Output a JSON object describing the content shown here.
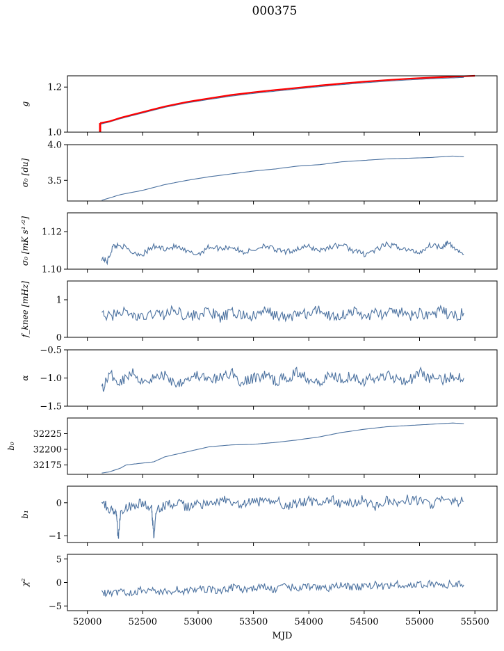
{
  "title": "000375",
  "xlabel": "MJD",
  "x_ticks": [
    52000,
    52500,
    53000,
    53500,
    54000,
    54500,
    55000,
    55500
  ],
  "x_tick_labels": [
    "52000",
    "52500",
    "53000",
    "53500",
    "54000",
    "54500",
    "55000",
    "55500"
  ],
  "xlim": [
    51820,
    55700
  ],
  "colors": {
    "series": "#4c72a0",
    "fit": "#ff0000"
  },
  "chart_data": [
    {
      "type": "line",
      "ylabel": "g",
      "ylim": [
        1.0,
        1.25
      ],
      "yticks": [
        1.0,
        1.2
      ],
      "ytick_labels": [
        "1.0",
        "1.2"
      ],
      "series": [
        {
          "x": [
            52115,
            52200,
            52300,
            52500,
            52700,
            52900,
            53100,
            53300,
            53500,
            53700,
            53900,
            54100,
            54300,
            54500,
            54700,
            54900,
            55100,
            55300,
            55400
          ],
          "y": [
            1.035,
            1.045,
            1.06,
            1.085,
            1.11,
            1.13,
            1.145,
            1.16,
            1.172,
            1.182,
            1.192,
            1.202,
            1.211,
            1.219,
            1.226,
            1.232,
            1.237,
            1.241,
            1.243
          ]
        },
        {
          "x": [
            52115,
            52200,
            52300,
            52500,
            52700,
            52900,
            53100,
            53300,
            53500,
            53700,
            53900,
            54100,
            54300,
            54500,
            54700,
            54900,
            55100,
            55300,
            55500
          ],
          "y": [
            1.04,
            1.048,
            1.064,
            1.089,
            1.114,
            1.134,
            1.15,
            1.165,
            1.177,
            1.187,
            1.197,
            1.207,
            1.216,
            1.224,
            1.231,
            1.237,
            1.242,
            1.246,
            1.25
          ]
        }
      ]
    },
    {
      "type": "line",
      "ylabel": "σ₀ [du]",
      "ylim": [
        3.21,
        4.0
      ],
      "yticks": [
        3.5,
        4.0
      ],
      "ytick_labels": [
        "3.5",
        "4.0"
      ],
      "series": [
        {
          "x": [
            52130,
            52300,
            52500,
            52700,
            52900,
            53100,
            53300,
            53500,
            53700,
            53900,
            54100,
            54300,
            54500,
            54700,
            54900,
            55100,
            55300,
            55400
          ],
          "y": [
            3.22,
            3.3,
            3.36,
            3.44,
            3.5,
            3.55,
            3.59,
            3.63,
            3.66,
            3.7,
            3.72,
            3.76,
            3.78,
            3.8,
            3.81,
            3.82,
            3.84,
            3.83
          ]
        }
      ]
    },
    {
      "type": "line",
      "ylabel": "σ₀ [mK s¹ᐟ²]",
      "ylim": [
        1.1,
        1.13
      ],
      "yticks": [
        1.1,
        1.12
      ],
      "ytick_labels": [
        "1.10",
        "1.12"
      ],
      "series": [
        {
          "x": [
            52130,
            52180,
            52230,
            52300,
            52400,
            52500,
            52600,
            52700,
            52800,
            52900,
            53000,
            53100,
            53200,
            53300,
            53400,
            53500,
            53600,
            53700,
            53800,
            53900,
            54000,
            54100,
            54200,
            54300,
            54400,
            54500,
            54600,
            54700,
            54800,
            54900,
            55000,
            55100,
            55200,
            55250,
            55320,
            55400
          ],
          "y": [
            1.106,
            1.104,
            1.112,
            1.113,
            1.109,
            1.108,
            1.112,
            1.111,
            1.112,
            1.109,
            1.108,
            1.112,
            1.111,
            1.112,
            1.109,
            1.11,
            1.113,
            1.11,
            1.109,
            1.111,
            1.112,
            1.11,
            1.112,
            1.113,
            1.11,
            1.108,
            1.11,
            1.113,
            1.112,
            1.11,
            1.109,
            1.113,
            1.112,
            1.114,
            1.111,
            1.108
          ]
        }
      ]
    },
    {
      "type": "line",
      "ylabel": "f_knee [mHz]",
      "ylim": [
        0,
        1.5
      ],
      "yticks": [
        0,
        1
      ],
      "ytick_labels": [
        "0",
        "1"
      ],
      "series": [
        {
          "x": [
            52130,
            52200,
            52300,
            52400,
            52500,
            52600,
            52700,
            52800,
            52900,
            53000,
            53100,
            53200,
            53300,
            53400,
            53500,
            53600,
            53700,
            53800,
            53900,
            54000,
            54100,
            54200,
            54300,
            54400,
            54500,
            54600,
            54700,
            54800,
            54900,
            55000,
            55100,
            55200,
            55300,
            55400
          ],
          "y": [
            0.6,
            0.55,
            0.7,
            0.6,
            0.5,
            0.65,
            0.6,
            0.75,
            0.55,
            0.6,
            0.7,
            0.5,
            0.65,
            0.6,
            0.55,
            0.7,
            0.6,
            0.5,
            0.65,
            0.6,
            0.75,
            0.55,
            0.6,
            0.7,
            0.55,
            0.65,
            0.6,
            0.7,
            0.55,
            0.65,
            0.6,
            0.7,
            0.55,
            0.65
          ]
        }
      ]
    },
    {
      "type": "line",
      "ylabel": "α",
      "ylim": [
        -1.5,
        -0.5
      ],
      "yticks": [
        -1.5,
        -1.0,
        -0.5
      ],
      "ytick_labels": [
        "−1.5",
        "−1.0",
        "−0.5"
      ],
      "series": [
        {
          "x": [
            52130,
            52200,
            52300,
            52400,
            52500,
            52600,
            52700,
            52800,
            52900,
            53000,
            53100,
            53200,
            53300,
            53400,
            53500,
            53600,
            53700,
            53800,
            53900,
            54000,
            54100,
            54200,
            54300,
            54400,
            54500,
            54600,
            54700,
            54800,
            54900,
            55000,
            55100,
            55200,
            55300,
            55400
          ],
          "y": [
            -1.2,
            -0.95,
            -1.05,
            -0.9,
            -1.05,
            -1.0,
            -0.95,
            -1.1,
            -1.0,
            -0.95,
            -1.05,
            -1.0,
            -0.9,
            -1.1,
            -1.0,
            -0.95,
            -1.05,
            -1.0,
            -0.9,
            -1.0,
            -1.05,
            -0.95,
            -1.0,
            -0.95,
            -1.05,
            -1.0,
            -0.95,
            -1.0,
            -1.05,
            -0.9,
            -1.0,
            -1.05,
            -0.95,
            -1.0
          ]
        }
      ]
    },
    {
      "type": "line",
      "ylabel": "b₀",
      "ylim": [
        32160,
        32250
      ],
      "yticks": [
        32175,
        32200,
        32225
      ],
      "ytick_labels": [
        "32175",
        "32200",
        "32225"
      ],
      "series": [
        {
          "x": [
            52130,
            52200,
            52300,
            52350,
            52500,
            52600,
            52700,
            52900,
            53100,
            53300,
            53500,
            53700,
            53900,
            54100,
            54300,
            54500,
            54700,
            54900,
            55100,
            55300,
            55400
          ],
          "y": [
            32162,
            32164,
            32170,
            32175,
            32178,
            32180,
            32188,
            32196,
            32204,
            32207,
            32208,
            32211,
            32215,
            32220,
            32227,
            32232,
            32236,
            32238,
            32240,
            32242,
            32241
          ]
        }
      ]
    },
    {
      "type": "line",
      "ylabel": "b₁",
      "ylim": [
        -1.2,
        0.5
      ],
      "yticks": [
        -1,
        0
      ],
      "ytick_labels": [
        "−1",
        "0"
      ],
      "series": [
        {
          "x": [
            52130,
            52200,
            52260,
            52280,
            52300,
            52400,
            52500,
            52580,
            52600,
            52620,
            52700,
            52800,
            52900,
            53000,
            53100,
            53200,
            53300,
            53400,
            53500,
            53600,
            53700,
            53800,
            53900,
            54000,
            54100,
            54200,
            54300,
            54400,
            54500,
            54600,
            54700,
            54800,
            54900,
            55000,
            55100,
            55200,
            55300,
            55400
          ],
          "y": [
            0.1,
            -0.2,
            -0.3,
            -1.1,
            -0.2,
            -0.1,
            0.0,
            -0.2,
            -1.0,
            -0.2,
            -0.1,
            0.0,
            -0.15,
            0.0,
            -0.1,
            0.1,
            0.0,
            -0.1,
            0.05,
            0.0,
            0.1,
            -0.1,
            0.0,
            0.05,
            0.0,
            0.1,
            -0.05,
            0.0,
            0.1,
            -0.1,
            0.05,
            0.0,
            0.1,
            0.05,
            -0.05,
            0.1,
            0.0,
            0.05
          ]
        }
      ]
    },
    {
      "type": "line",
      "ylabel": "χ²",
      "ylim": [
        -6,
        6
      ],
      "yticks": [
        -5,
        0,
        5
      ],
      "ytick_labels": [
        "−5",
        "0",
        "5"
      ],
      "series": [
        {
          "x": [
            52130,
            52200,
            52300,
            52400,
            52500,
            52600,
            52700,
            52800,
            52900,
            53000,
            53100,
            53200,
            53300,
            53400,
            53500,
            53600,
            53700,
            53800,
            53900,
            54000,
            54100,
            54200,
            54300,
            54400,
            54500,
            54600,
            54700,
            54800,
            54900,
            55000,
            55100,
            55200,
            55300,
            55400
          ],
          "y": [
            -2.0,
            -2.5,
            -2.0,
            -2.3,
            -1.5,
            -1.8,
            -2.0,
            -1.5,
            -2.0,
            -1.2,
            -1.5,
            -1.8,
            -1.0,
            -1.5,
            -1.2,
            -1.0,
            -1.5,
            -0.8,
            -1.2,
            -1.0,
            -0.8,
            -1.2,
            -0.5,
            -1.0,
            -0.8,
            -0.5,
            -1.0,
            -0.3,
            -0.8,
            -0.5,
            -0.2,
            -0.6,
            -0.3,
            -0.5
          ]
        }
      ]
    }
  ]
}
